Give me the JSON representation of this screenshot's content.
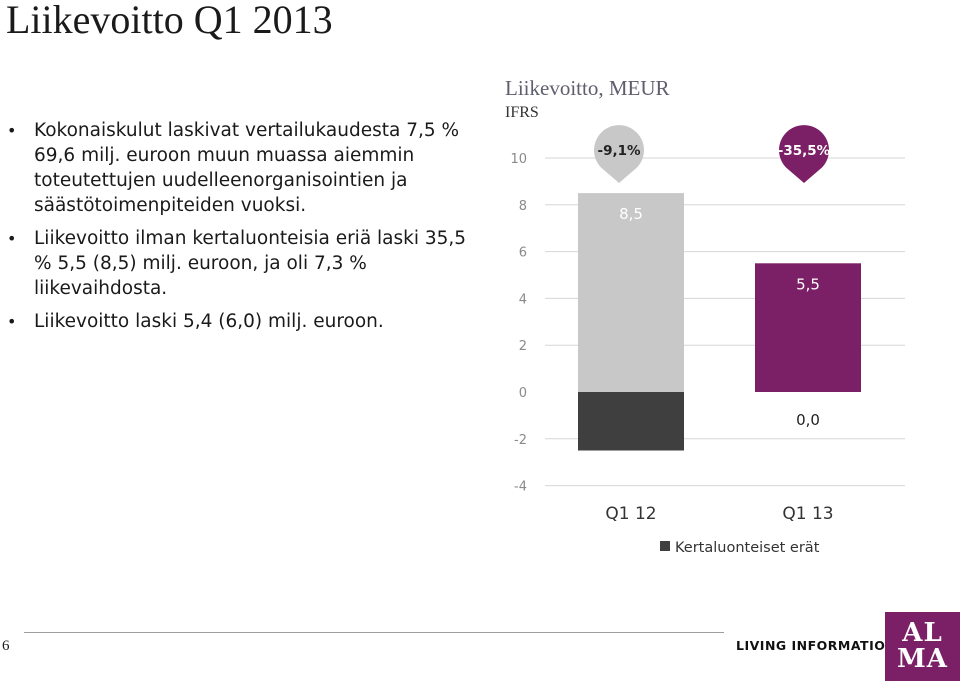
{
  "slide": {
    "title": "Liikevoitto Q1 2013",
    "page_number": "6",
    "bullets": [
      "Kokonaiskulut laskivat vertailukaudesta 7,5 % 69,6 milj. euroon muun muassa aiemmin toteutettujen uudelleenorganisointien ja säästötoimenpiteiden vuoksi.",
      "Liikevoitto ilman kertaluonteisia eriä laski 35,5 % 5,5 (8,5) milj. euroon, ja oli 7,3 % liikevaihdosta.",
      "Liikevoitto laski 5,4 (6,0) milj. euroon."
    ]
  },
  "footer": {
    "tagline": "LIVING INFORMATION",
    "logo_text": "ALMA"
  },
  "chart_data": {
    "type": "bar",
    "title": "Liikevoitto, MEUR",
    "subtitle": "IFRS",
    "categories": [
      "Q1 12",
      "Q1 13"
    ],
    "series": [
      {
        "values": [
          8.5,
          5.5
        ],
        "labels": [
          "8,5",
          "5,5"
        ],
        "colors": [
          "#c8c8c8",
          "#7b1f66"
        ]
      },
      {
        "name": "Kertaluonteiset erät",
        "values": [
          -2.5,
          0.0
        ],
        "labels": [
          "",
          "0,0"
        ],
        "color": "#3f3f3f"
      }
    ],
    "change_markers": [
      {
        "category": "Q1 12",
        "label": "-9,1%",
        "color": "#c8c8c8"
      },
      {
        "category": "Q1 13",
        "label": "-35,5%",
        "color": "#7b1f66"
      }
    ],
    "y_ticks": [
      "10",
      "8",
      "6",
      "4",
      "2",
      "0",
      "-2",
      "-4"
    ],
    "ylim": [
      -4,
      10
    ],
    "legend_position": "bottom"
  }
}
